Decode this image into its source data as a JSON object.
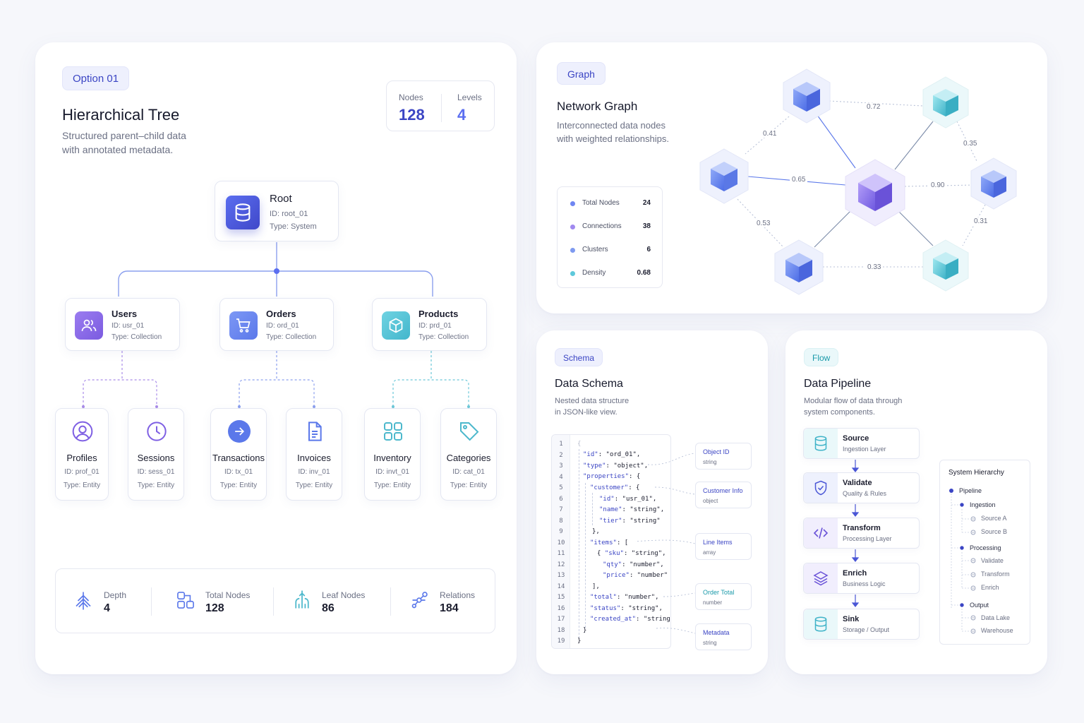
{
  "colors": {
    "indigo": "#3b45c4",
    "blue": "#5b6ef0",
    "purple": "#8f7af2",
    "teal": "#5ec9db",
    "dashed_purple": "#a98ce8"
  },
  "tree": {
    "badge": "Option 01",
    "title": "Hierarchical Tree",
    "subtitle_1": "Structured parent–child data",
    "subtitle_2": "with annotated metadata.",
    "summary": {
      "nodes_label": "Nodes",
      "nodes_value": "128",
      "levels_label": "Levels",
      "levels_value": "4"
    },
    "root": {
      "name": "Root",
      "id": "ID: root_01",
      "type": "Type: System",
      "icon": "database-icon"
    },
    "children": [
      {
        "name": "Users",
        "id": "ID: usr_01",
        "type": "Type: Collection",
        "icon": "users-icon"
      },
      {
        "name": "Orders",
        "id": "ID: ord_01",
        "type": "Type: Collection",
        "icon": "cart-icon"
      },
      {
        "name": "Products",
        "id": "ID: prd_01",
        "type": "Type: Collection",
        "icon": "box-icon"
      }
    ],
    "leaves": [
      {
        "name": "Profiles",
        "id": "ID: prof_01",
        "type": "Type: Entity",
        "icon": "user-circle-icon"
      },
      {
        "name": "Sessions",
        "id": "ID: sess_01",
        "type": "Type: Entity",
        "icon": "clock-icon"
      },
      {
        "name": "Transactions",
        "id": "ID: tx_01",
        "type": "Type: Entity",
        "icon": "arrow-right-icon"
      },
      {
        "name": "Invoices",
        "id": "ID: inv_01",
        "type": "Type: Entity",
        "icon": "document-icon"
      },
      {
        "name": "Inventory",
        "id": "ID: invt_01",
        "type": "Type: Entity",
        "icon": "grid-icon"
      },
      {
        "name": "Categories",
        "id": "ID: cat_01",
        "type": "Type: Entity",
        "icon": "tag-icon"
      }
    ],
    "stats": [
      {
        "label": "Depth",
        "value": "4",
        "icon": "tree-depth-icon"
      },
      {
        "label": "Total Nodes",
        "value": "128",
        "icon": "nodes-icon"
      },
      {
        "label": "Leaf Nodes",
        "value": "86",
        "icon": "leaf-nodes-icon"
      },
      {
        "label": "Relations",
        "value": "184",
        "icon": "relations-icon"
      }
    ]
  },
  "graph": {
    "badge": "Graph",
    "title": "Network Graph",
    "subtitle_1": "Interconnected data nodes",
    "subtitle_2": "with weighted relationships.",
    "legend": [
      {
        "label": "Total Nodes",
        "value": "24",
        "color": "#6f86f2"
      },
      {
        "label": "Connections",
        "value": "38",
        "color": "#a089ef"
      },
      {
        "label": "Clusters",
        "value": "6",
        "color": "#7e9af0"
      },
      {
        "label": "Density",
        "value": "0.68",
        "color": "#5ec9db"
      }
    ],
    "edge_labels": [
      "0.72",
      "0.41",
      "0.35",
      "0.65",
      "0.90",
      "0.53",
      "0.31",
      "0.33"
    ]
  },
  "schema": {
    "badge": "Schema",
    "title": "Data Schema",
    "subtitle_1": "Nested data structure",
    "subtitle_2": "in JSON-like view.",
    "line_numbers": [
      "1",
      "2",
      "3",
      "4",
      "5",
      "6",
      "7",
      "8",
      "9",
      "10",
      "11",
      "12",
      "13",
      "14",
      "15",
      "16",
      "17",
      "18",
      "19"
    ],
    "code": {
      "l1": "{",
      "l2k": "\"id\"",
      "l2v": "\"ord_01\",",
      "l3k": "\"type\"",
      "l3v": "\"object\",",
      "l4k": "\"properties\"",
      "l4v": "{",
      "l5k": "\"customer\"",
      "l5v": "{",
      "l6k": "\"id\"",
      "l6v": "\"usr_01\",",
      "l7k": "\"name\"",
      "l7v": "\"string\",",
      "l8k": "\"tier\"",
      "l8v": "\"string\"",
      "l9": "},",
      "l10k": "\"items\"",
      "l10v": "[",
      "l11a": "{",
      "l11k": "\"sku\"",
      "l11v": "\"string\",",
      "l12k": "\"qty\"",
      "l12v": "\"number\",",
      "l13k": "\"price\"",
      "l13v": "\"number\"",
      "l13c": "}",
      "l14": "],",
      "l15k": "\"total\"",
      "l15v": "\"number\",",
      "l16k": "\"status\"",
      "l16v": "\"string\",",
      "l17k": "\"created_at\"",
      "l17v": "\"string\"",
      "l18": "}",
      "l19": "}"
    },
    "tags": [
      {
        "title": "Object ID",
        "type": "string"
      },
      {
        "title": "Customer Info",
        "type": "object"
      },
      {
        "title": "Line Items",
        "type": "array"
      },
      {
        "title": "Order Total",
        "type": "number"
      },
      {
        "title": "Metadata",
        "type": "string"
      }
    ]
  },
  "pipeline": {
    "badge": "Flow",
    "title": "Data Pipeline",
    "subtitle_1": "Modular flow of data through",
    "subtitle_2": "system components.",
    "steps": [
      {
        "name": "Source",
        "sub": "Ingestion Layer",
        "icon": "database-icon"
      },
      {
        "name": "Validate",
        "sub": "Quality & Rules",
        "icon": "shield-check-icon"
      },
      {
        "name": "Transform",
        "sub": "Processing Layer",
        "icon": "code-icon"
      },
      {
        "name": "Enrich",
        "sub": "Business Logic",
        "icon": "layers-icon"
      },
      {
        "name": "Sink",
        "sub": "Storage / Output",
        "icon": "database-icon"
      }
    ],
    "hierarchy": {
      "title": "System Hierarchy",
      "root": "Pipeline",
      "groups": [
        {
          "name": "Ingestion",
          "items": [
            "Source A",
            "Source B"
          ]
        },
        {
          "name": "Processing",
          "items": [
            "Validate",
            "Transform",
            "Enrich"
          ]
        },
        {
          "name": "Output",
          "items": [
            "Data Lake",
            "Warehouse"
          ]
        }
      ]
    }
  }
}
